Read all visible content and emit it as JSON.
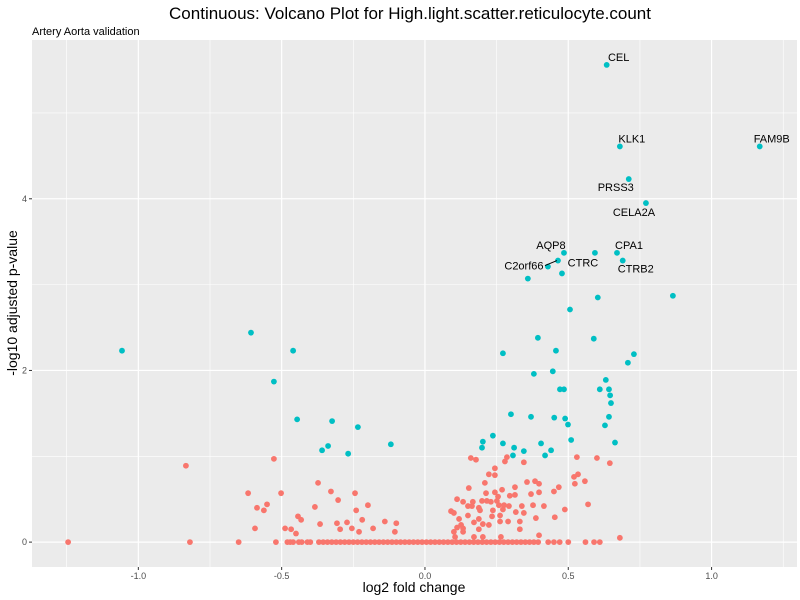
{
  "chart_data": {
    "type": "scatter",
    "title": "Continuous: Volcano Plot for High.light.scatter.reticulocyte.count",
    "subtitle": "Artery Aorta validation",
    "xlabel": "log2 fold change",
    "ylabel": "-log10 adjusted p-value",
    "xlim": [
      -1.371,
      1.298
    ],
    "ylim": [
      -0.29,
      5.85
    ],
    "xticks": [
      -1.0,
      -0.5,
      0.0,
      0.5,
      1.0
    ],
    "xtick_labels": [
      "-1.0",
      "-0.5",
      "0.0",
      "0.5",
      "1.0"
    ],
    "yticks": [
      0,
      2,
      4
    ],
    "ytick_labels": [
      "0",
      "2",
      "4"
    ],
    "grid": true,
    "legend": "none",
    "colors": {
      "significant": "#00BFC4",
      "not_significant": "#F8766D",
      "panel": "#EBEBEB",
      "grid": "#FFFFFF"
    },
    "series": [
      {
        "name": "significant",
        "points": [
          [
            0.634,
            5.56
          ],
          [
            0.68,
            4.61
          ],
          [
            1.168,
            4.61
          ],
          [
            0.711,
            4.23
          ],
          [
            0.771,
            3.95
          ],
          [
            0.67,
            3.37
          ],
          [
            0.593,
            3.37
          ],
          [
            0.485,
            3.37
          ],
          [
            0.464,
            3.28
          ],
          [
            0.69,
            3.28
          ],
          [
            0.429,
            3.21
          ],
          [
            0.478,
            3.13
          ],
          [
            0.359,
            3.07
          ],
          [
            0.603,
            2.85
          ],
          [
            0.865,
            2.87
          ],
          [
            0.506,
            2.71
          ],
          [
            0.394,
            2.38
          ],
          [
            0.589,
            2.37
          ],
          [
            0.272,
            2.2
          ],
          [
            0.457,
            2.23
          ],
          [
            0.729,
            2.19
          ],
          [
            0.708,
            2.09
          ],
          [
            0.446,
            1.99
          ],
          [
            0.38,
            1.96
          ],
          [
            0.631,
            1.89
          ],
          [
            0.642,
            1.78
          ],
          [
            0.471,
            1.78
          ],
          [
            0.485,
            1.78
          ],
          [
            0.61,
            1.78
          ],
          [
            0.646,
            1.71
          ],
          [
            0.649,
            1.62
          ],
          [
            0.37,
            1.46
          ],
          [
            0.3,
            1.49
          ],
          [
            0.451,
            1.45
          ],
          [
            0.489,
            1.44
          ],
          [
            0.642,
            1.46
          ],
          [
            0.499,
            1.37
          ],
          [
            0.628,
            1.36
          ],
          [
            0.237,
            1.24
          ],
          [
            0.272,
            1.15
          ],
          [
            0.405,
            1.15
          ],
          [
            0.51,
            1.19
          ],
          [
            0.663,
            1.16
          ],
          [
            0.202,
            1.17
          ],
          [
            0.199,
            1.1
          ],
          [
            0.311,
            1.1
          ],
          [
            0.307,
            1.01
          ],
          [
            0.345,
            1.06
          ],
          [
            0.419,
            1.01
          ],
          [
            0.44,
            1.07
          ],
          [
            -1.057,
            2.23
          ],
          [
            -0.607,
            2.44
          ],
          [
            -0.46,
            2.23
          ],
          [
            -0.527,
            1.87
          ],
          [
            -0.446,
            1.43
          ],
          [
            -0.324,
            1.41
          ],
          [
            -0.234,
            1.34
          ],
          [
            -0.119,
            1.14
          ],
          [
            -0.338,
            1.12
          ],
          [
            -0.359,
            1.07
          ],
          [
            -0.268,
            1.03
          ]
        ]
      },
      {
        "name": "not_significant",
        "points": [
          [
            0.16,
            0.98
          ],
          [
            0.178,
            0.96
          ],
          [
            0.244,
            0.86
          ],
          [
            0.286,
            0.99
          ],
          [
            0.279,
            0.94
          ],
          [
            0.345,
            0.93
          ],
          [
            0.53,
            0.99
          ],
          [
            0.6,
            0.98
          ],
          [
            0.645,
            0.92
          ],
          [
            0.223,
            0.79
          ],
          [
            0.244,
            0.78
          ],
          [
            0.209,
            0.69
          ],
          [
            0.356,
            0.7
          ],
          [
            0.384,
            0.71
          ],
          [
            0.398,
            0.68
          ],
          [
            0.52,
            0.76
          ],
          [
            0.534,
            0.79
          ],
          [
            0.558,
            0.71
          ],
          [
            0.523,
            0.68
          ],
          [
            0.467,
            0.64
          ],
          [
            0.45,
            0.59
          ],
          [
            0.153,
            0.63
          ],
          [
            0.314,
            0.64
          ],
          [
            0.269,
            0.61
          ],
          [
            0.244,
            0.58
          ],
          [
            0.213,
            0.57
          ],
          [
            0.37,
            0.56
          ],
          [
            0.398,
            0.58
          ],
          [
            0.296,
            0.54
          ],
          [
            0.314,
            0.55
          ],
          [
            0.112,
            0.5
          ],
          [
            0.133,
            0.47
          ],
          [
            0.167,
            0.47
          ],
          [
            0.199,
            0.48
          ],
          [
            0.216,
            0.48
          ],
          [
            0.23,
            0.47
          ],
          [
            0.251,
            0.48
          ],
          [
            0.255,
            0.53
          ],
          [
            0.15,
            0.42
          ],
          [
            0.164,
            0.42
          ],
          [
            0.188,
            0.4
          ],
          [
            0.258,
            0.43
          ],
          [
            0.276,
            0.43
          ],
          [
            0.293,
            0.42
          ],
          [
            0.338,
            0.42
          ],
          [
            0.377,
            0.43
          ],
          [
            0.415,
            0.42
          ],
          [
            0.569,
            0.44
          ],
          [
            0.488,
            0.38
          ],
          [
            0.091,
            0.36
          ],
          [
            0.101,
            0.34
          ],
          [
            0.192,
            0.37
          ],
          [
            0.237,
            0.37
          ],
          [
            0.272,
            0.38
          ],
          [
            0.317,
            0.35
          ],
          [
            0.345,
            0.34
          ],
          [
            0.15,
            0.31
          ],
          [
            0.234,
            0.3
          ],
          [
            0.262,
            0.31
          ],
          [
            0.387,
            0.28
          ],
          [
            0.453,
            0.29
          ],
          [
            0.119,
            0.27
          ],
          [
            0.188,
            0.27
          ],
          [
            0.171,
            0.23
          ],
          [
            0.262,
            0.24
          ],
          [
            0.29,
            0.24
          ],
          [
            0.331,
            0.24
          ],
          [
            0.126,
            0.2
          ],
          [
            0.202,
            0.21
          ],
          [
            0.223,
            0.2
          ],
          [
            0.112,
            0.17
          ],
          [
            0.133,
            0.16
          ],
          [
            0.188,
            0.15
          ],
          [
            0.331,
            0.15
          ],
          [
            0.101,
            0.12
          ],
          [
            0.133,
            0.12
          ],
          [
            0.105,
            0.06
          ],
          [
            0.171,
            0.06
          ],
          [
            0.202,
            0.06
          ],
          [
            0.265,
            0.06
          ],
          [
            0.398,
            0.08
          ],
          [
            0.68,
            0.05
          ],
          [
            -0.834,
            0.89
          ],
          [
            -0.527,
            0.97
          ],
          [
            -0.617,
            0.57
          ],
          [
            -0.502,
            0.57
          ],
          [
            -0.373,
            0.69
          ],
          [
            -0.328,
            0.59
          ],
          [
            -0.244,
            0.57
          ],
          [
            -0.586,
            0.4
          ],
          [
            -0.562,
            0.37
          ],
          [
            -0.551,
            0.44
          ],
          [
            -0.443,
            0.3
          ],
          [
            -0.432,
            0.26
          ],
          [
            -0.366,
            0.21
          ],
          [
            -0.307,
            0.22
          ],
          [
            -0.272,
            0.23
          ],
          [
            -0.199,
            0.43
          ],
          [
            -0.24,
            0.37
          ],
          [
            -0.219,
            0.26
          ],
          [
            -0.14,
            0.24
          ],
          [
            -0.1,
            0.22
          ],
          [
            -0.384,
            0.41
          ],
          [
            -0.593,
            0.16
          ],
          [
            -0.488,
            0.16
          ],
          [
            -0.45,
            0.1
          ],
          [
            -0.296,
            0.15
          ],
          [
            -0.255,
            0.16
          ],
          [
            -0.23,
            0.12
          ],
          [
            -0.181,
            0.16
          ],
          [
            -0.105,
            0.12
          ],
          [
            -0.303,
            0.49
          ],
          [
            -0.467,
            0.15
          ],
          [
            -1.245,
            0
          ],
          [
            -0.82,
            0
          ],
          [
            -0.65,
            0
          ],
          [
            -0.52,
            0
          ],
          [
            -0.48,
            0
          ],
          [
            -0.47,
            0
          ],
          [
            -0.46,
            0
          ],
          [
            -0.44,
            0
          ],
          [
            -0.43,
            0
          ],
          [
            -0.41,
            0
          ],
          [
            -0.4,
            0
          ],
          [
            -0.37,
            0
          ],
          [
            -0.355,
            0
          ],
          [
            -0.34,
            0
          ],
          [
            -0.325,
            0
          ],
          [
            -0.31,
            0
          ],
          [
            -0.295,
            0
          ],
          [
            -0.28,
            0
          ],
          [
            -0.265,
            0
          ],
          [
            -0.25,
            0
          ],
          [
            -0.235,
            0
          ],
          [
            -0.22,
            0
          ],
          [
            -0.205,
            0
          ],
          [
            -0.19,
            0
          ],
          [
            -0.175,
            0
          ],
          [
            -0.16,
            0
          ],
          [
            -0.145,
            0
          ],
          [
            -0.13,
            0
          ],
          [
            -0.115,
            0
          ],
          [
            -0.1,
            0
          ],
          [
            -0.085,
            0
          ],
          [
            -0.07,
            0
          ],
          [
            -0.055,
            0
          ],
          [
            -0.04,
            0
          ],
          [
            -0.025,
            0
          ],
          [
            -0.01,
            0
          ],
          [
            0.005,
            0
          ],
          [
            0.02,
            0
          ],
          [
            0.035,
            0
          ],
          [
            0.05,
            0
          ],
          [
            0.065,
            0
          ],
          [
            0.08,
            0
          ],
          [
            0.095,
            0
          ],
          [
            0.11,
            0
          ],
          [
            0.125,
            0
          ],
          [
            0.14,
            0
          ],
          [
            0.155,
            0
          ],
          [
            0.17,
            0
          ],
          [
            0.185,
            0
          ],
          [
            0.2,
            0
          ],
          [
            0.215,
            0
          ],
          [
            0.23,
            0
          ],
          [
            0.245,
            0
          ],
          [
            0.26,
            0
          ],
          [
            0.275,
            0
          ],
          [
            0.29,
            0
          ],
          [
            0.305,
            0
          ],
          [
            0.32,
            0
          ],
          [
            0.335,
            0
          ],
          [
            0.35,
            0
          ],
          [
            0.365,
            0
          ],
          [
            0.38,
            0
          ],
          [
            0.395,
            0
          ],
          [
            0.43,
            0
          ],
          [
            0.45,
            0
          ],
          [
            0.47,
            0
          ],
          [
            0.5,
            0
          ],
          [
            0.56,
            0
          ],
          [
            0.59,
            0
          ],
          [
            0.61,
            0
          ]
        ]
      }
    ],
    "annotations": [
      {
        "label": "CEL",
        "x": 0.634,
        "y": 5.56
      },
      {
        "label": "KLK1",
        "x": 0.68,
        "y": 4.61
      },
      {
        "label": "FAM9B",
        "x": 1.168,
        "y": 4.61
      },
      {
        "label": "PRSS3",
        "x": 0.711,
        "y": 4.23
      },
      {
        "label": "CELA2A",
        "x": 0.771,
        "y": 3.95
      },
      {
        "label": "CPA1",
        "x": 0.67,
        "y": 3.37
      },
      {
        "label": "AQP8",
        "x": 0.485,
        "y": 3.37
      },
      {
        "label": "C2orf66",
        "x": 0.464,
        "y": 3.28
      },
      {
        "label": "CTRC",
        "x": 0.478,
        "y": 3.13
      },
      {
        "label": "CTRB2",
        "x": 0.69,
        "y": 3.28
      }
    ]
  }
}
